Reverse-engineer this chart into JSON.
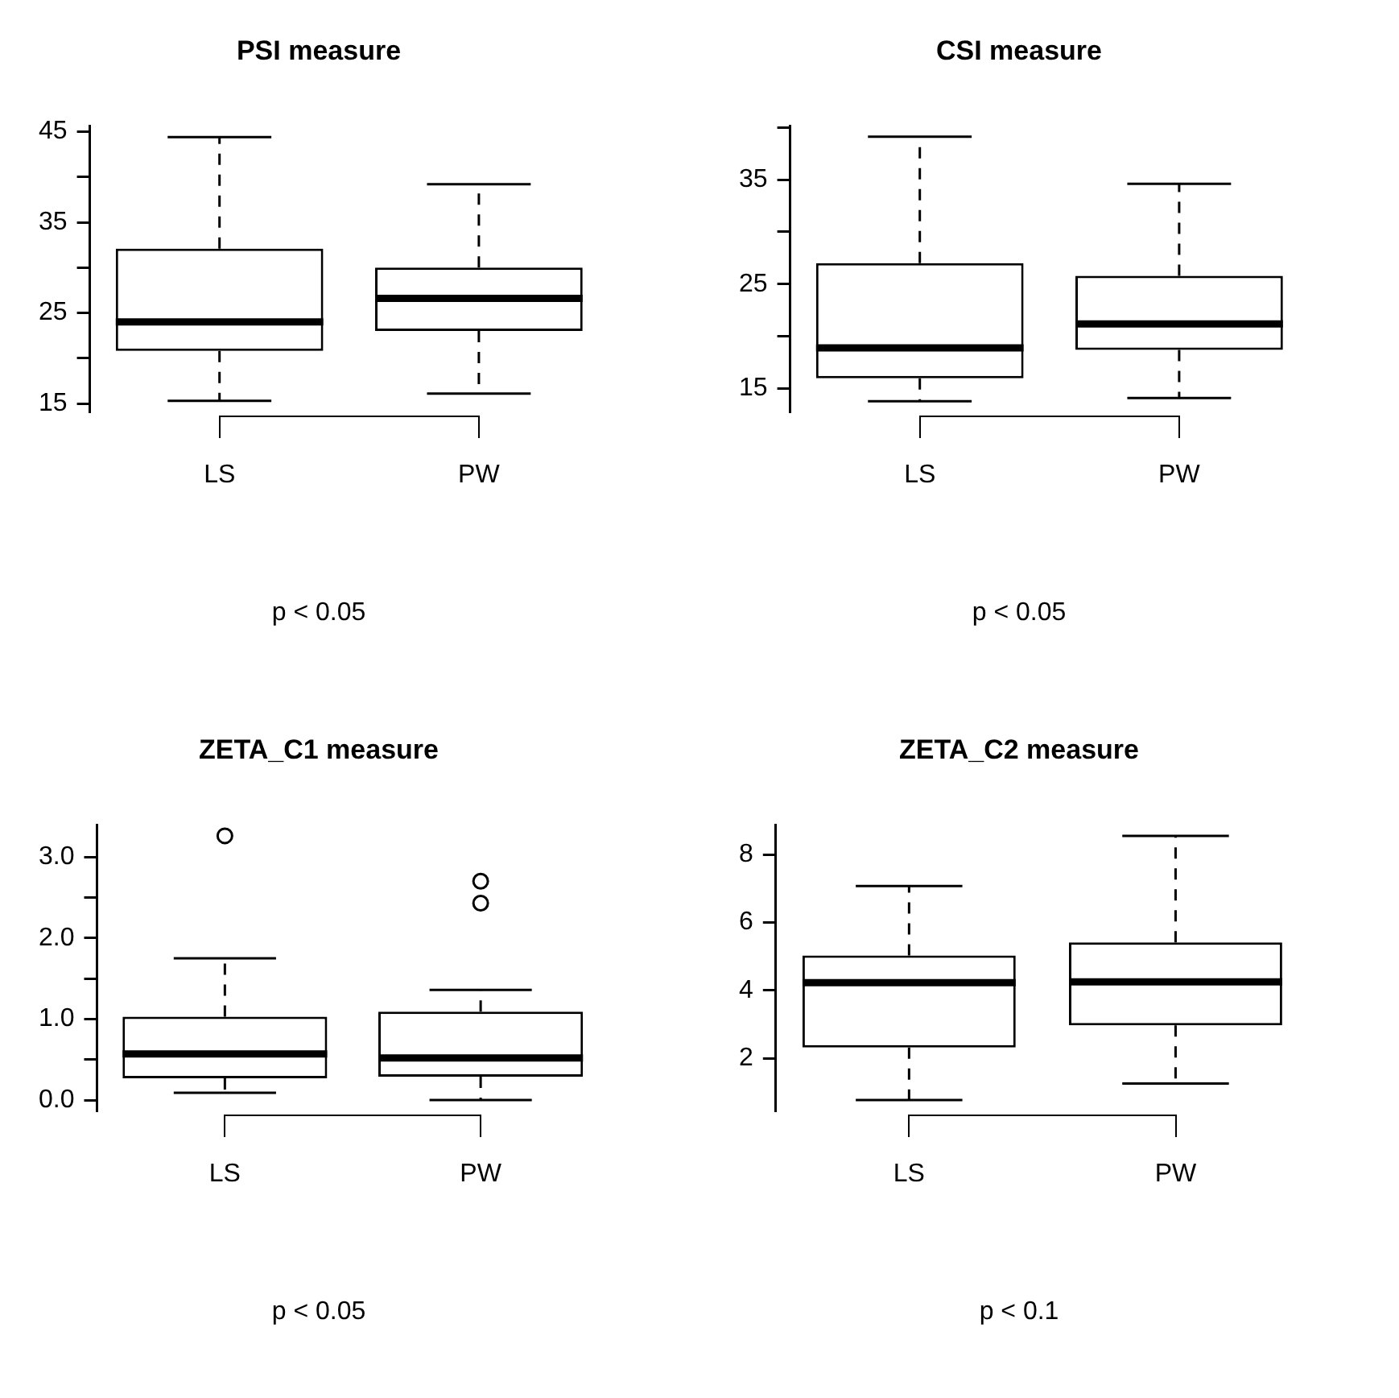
{
  "chart_data": [
    {
      "type": "box",
      "title": "PSI measure",
      "categories": [
        "LS",
        "PW"
      ],
      "annotations": [
        "p < 0.05"
      ],
      "grid": false,
      "boxes": [
        {
          "low": 15.3,
          "q1": 20.8,
          "median": 24.0,
          "q3": 32.1,
          "high": 44.4
        },
        {
          "low": 16.1,
          "q1": 23.0,
          "median": 26.6,
          "q3": 30.0,
          "high": 39.2
        }
      ],
      "ylim": [
        14.1,
        45.6
      ],
      "yticks": [
        15,
        {
          "value": 20,
          "label": null
        },
        25,
        {
          "value": 30,
          "label": null
        },
        35,
        {
          "value": 40,
          "label": null
        },
        45
      ]
    },
    {
      "type": "box",
      "title": "CSI measure",
      "categories": [
        "LS",
        "PW"
      ],
      "annotations": [
        "p < 0.05"
      ],
      "grid": false,
      "boxes": [
        {
          "low": 13.8,
          "q1": 16.0,
          "median": 18.9,
          "q3": 27.0,
          "high": 39.1
        },
        {
          "low": 14.1,
          "q1": 18.7,
          "median": 21.2,
          "q3": 25.8,
          "high": 34.6
        }
      ],
      "ylim": [
        12.8,
        40.1
      ],
      "yticks": [
        15,
        {
          "value": 20,
          "label": null
        },
        25,
        {
          "value": 30,
          "label": null
        },
        35,
        {
          "value": 40,
          "label": null
        }
      ]
    },
    {
      "type": "box",
      "title": "ZETA_C1 measure",
      "categories": [
        "LS",
        "PW"
      ],
      "annotations": [
        "p < 0.05"
      ],
      "grid": false,
      "boxes": [
        {
          "low": 0.09,
          "q1": 0.27,
          "median": 0.57,
          "q3": 1.03,
          "high": 1.75,
          "outliers": [
            3.26
          ]
        },
        {
          "low": 0.0,
          "q1": 0.29,
          "median": 0.52,
          "q3": 1.09,
          "high": 1.36,
          "outliers": [
            2.7,
            2.43
          ]
        }
      ],
      "ylim": [
        -0.13,
        3.39
      ],
      "yticks": [
        {
          "value": 0,
          "label": "0.0"
        },
        {
          "value": 0.5,
          "label": null
        },
        {
          "value": 1,
          "label": "1.0"
        },
        {
          "value": 1.5,
          "label": null
        },
        {
          "value": 2,
          "label": "2.0"
        },
        {
          "value": 2.5,
          "label": null
        },
        {
          "value": 3,
          "label": "3.0"
        }
      ]
    },
    {
      "type": "box",
      "title": "ZETA_C2 measure",
      "categories": [
        "LS",
        "PW"
      ],
      "annotations": [
        "p < 0.1"
      ],
      "grid": false,
      "boxes": [
        {
          "low": 0.77,
          "q1": 2.32,
          "median": 4.23,
          "q3": 5.03,
          "high": 7.07
        },
        {
          "low": 1.26,
          "q1": 2.97,
          "median": 4.25,
          "q3": 5.41,
          "high": 8.55
        }
      ],
      "ylim": [
        0.46,
        8.86
      ],
      "yticks": [
        2,
        4,
        6,
        8
      ]
    }
  ]
}
